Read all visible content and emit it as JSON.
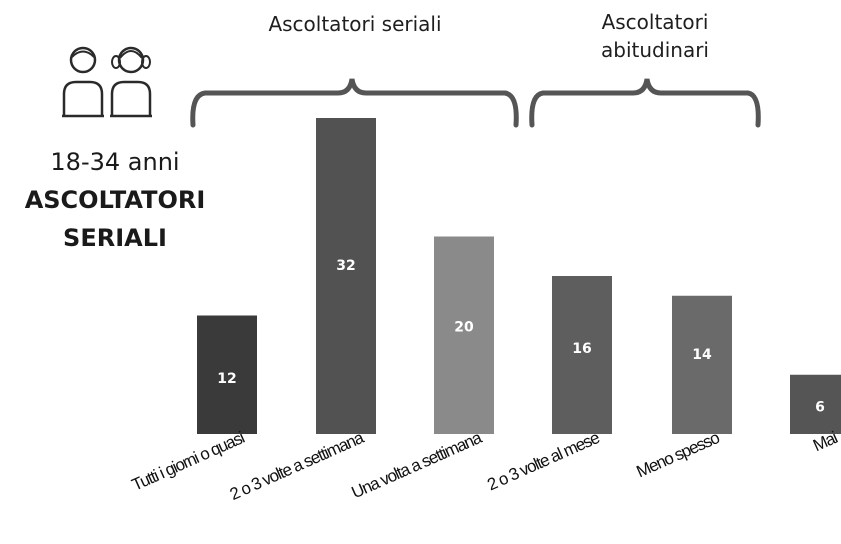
{
  "side_panel": {
    "age_range": "18-34 anni",
    "segment_line1": "ASCOLTATORI",
    "segment_line2": "SERIALI",
    "icon": "two-people-icon"
  },
  "groups": {
    "group1_label": "Ascoltatori seriali",
    "group2_label_line1": "Ascoltatori",
    "group2_label_line2": "abitudinari"
  },
  "colors": {
    "bar_1": "#3a3a3a",
    "bar_2": "#525252",
    "bar_3": "#8a8a8a",
    "bar_4": "#5e5e5e",
    "bar_5": "#6a6a6a",
    "bar_6": "#555555",
    "bracket": "#555555",
    "value_label": "#ffffff"
  },
  "chart_data": {
    "type": "bar",
    "title": "",
    "xlabel": "",
    "ylabel": "",
    "categories": [
      "Tutti i giorni o quasi",
      "2 o 3 volte a settimana",
      "Una volta a settimana",
      "2 o 3 volte al mese",
      "Meno spesso",
      "Mai"
    ],
    "values": [
      12,
      32,
      20,
      16,
      14,
      6
    ],
    "ylim": [
      0,
      32
    ],
    "grid": false,
    "legend": "none",
    "data_labels": true
  }
}
